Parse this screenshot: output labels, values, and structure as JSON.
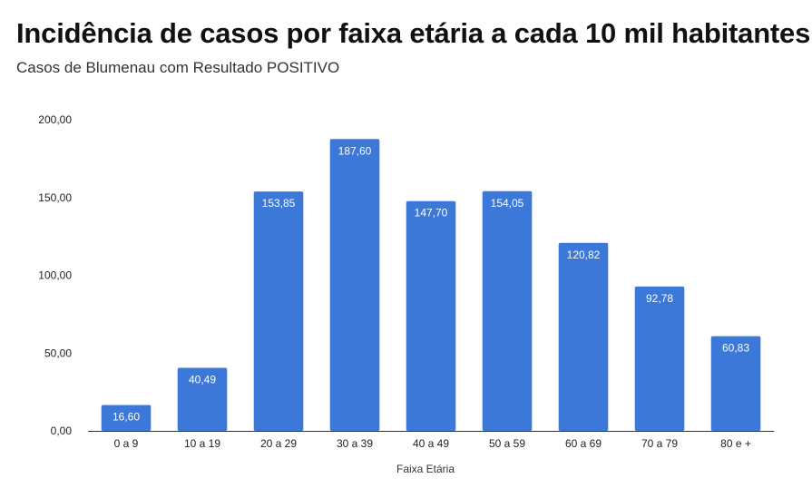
{
  "chart_data": {
    "type": "bar",
    "title": "Incidência de casos por faixa etária a cada 10 mil habitantes",
    "subtitle": "Casos de Blumenau com Resultado POSITIVO",
    "xlabel": "Faixa Etária",
    "ylabel": "",
    "categories": [
      "0 a 9",
      "10 a 19",
      "20 a 29",
      "30 a 39",
      "40 a 49",
      "50 a 59",
      "60 a 69",
      "70 a 79",
      "80 e +"
    ],
    "values": [
      16.6,
      40.49,
      153.85,
      187.6,
      147.7,
      154.05,
      120.82,
      92.78,
      60.83
    ],
    "value_labels": [
      "16,60",
      "40,49",
      "153,85",
      "187,60",
      "147,70",
      "154,05",
      "120,82",
      "92,78",
      "60,83"
    ],
    "ylim": [
      0,
      200
    ],
    "yticks": [
      0,
      50,
      100,
      150,
      200
    ],
    "ytick_labels": [
      "0,00",
      "50,00",
      "100,00",
      "150,00",
      "200,00"
    ],
    "grid": false,
    "legend": "none",
    "bar_color": "#3c78d8"
  }
}
